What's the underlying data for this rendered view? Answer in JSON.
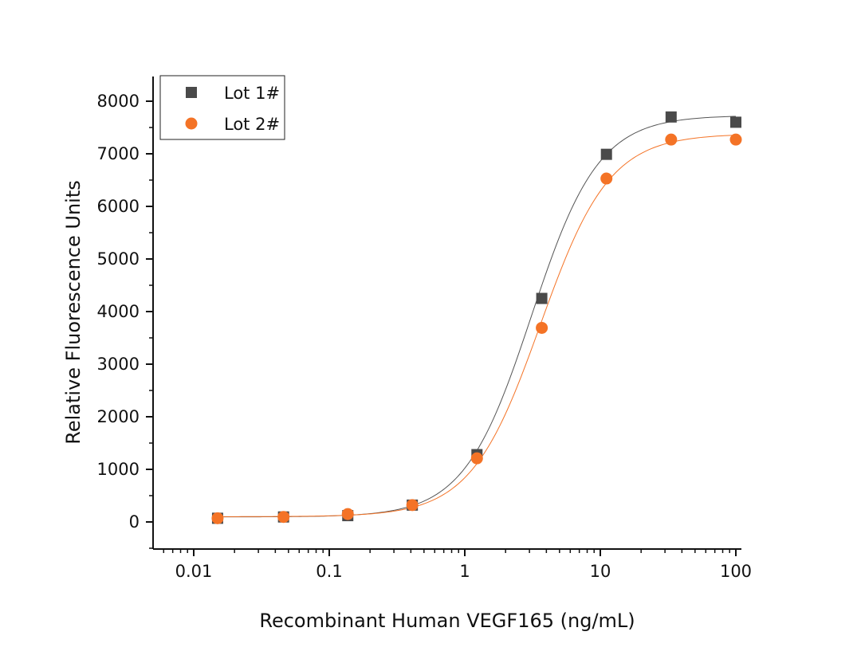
{
  "chart_data": {
    "type": "scatter",
    "title": "",
    "xlabel": "Recombinant Human VEGF165 (ng/mL)",
    "ylabel": "Relative Fluorescence Units",
    "xscale": "log",
    "xlim": [
      0.005,
      105
    ],
    "ylim": [
      -500,
      8500
    ],
    "x_ticks": [
      {
        "value": 0.01,
        "label": "0.01"
      },
      {
        "value": 0.1,
        "label": "0.1"
      },
      {
        "value": 1,
        "label": "1"
      },
      {
        "value": 10,
        "label": "10"
      },
      {
        "value": 100,
        "label": "100"
      }
    ],
    "y_ticks": [
      {
        "value": 0,
        "label": "0"
      },
      {
        "value": 1000,
        "label": "1000"
      },
      {
        "value": 2000,
        "label": "2000"
      },
      {
        "value": 3000,
        "label": "3000"
      },
      {
        "value": 4000,
        "label": "4000"
      },
      {
        "value": 5000,
        "label": "5000"
      },
      {
        "value": 6000,
        "label": "6000"
      },
      {
        "value": 7000,
        "label": "7000"
      },
      {
        "value": 8000,
        "label": "8000"
      }
    ],
    "grid": false,
    "legend_position": "top-left",
    "series": [
      {
        "name": "Lot 1#",
        "marker": "square",
        "color": "#4a4a4a",
        "fit_color": "#555555",
        "x": [
          0.015,
          0.046,
          0.137,
          0.41,
          1.23,
          3.7,
          11.1,
          33.3,
          100
        ],
        "y": [
          70,
          95,
          120,
          320,
          1280,
          4250,
          6990,
          7700,
          7600
        ],
        "fit": {
          "bottom": 95,
          "top": 7730,
          "ec50": 3.1,
          "hill": 1.75
        }
      },
      {
        "name": "Lot 2#",
        "marker": "circle",
        "color": "#f47326",
        "fit_color": "#f47326",
        "x": [
          0.015,
          0.046,
          0.137,
          0.41,
          1.23,
          3.7,
          11.1,
          33.3,
          100
        ],
        "y": [
          70,
          95,
          150,
          320,
          1210,
          3690,
          6530,
          7270,
          7270
        ],
        "fit": {
          "bottom": 100,
          "top": 7380,
          "ec50": 3.6,
          "hill": 1.7
        }
      }
    ]
  }
}
